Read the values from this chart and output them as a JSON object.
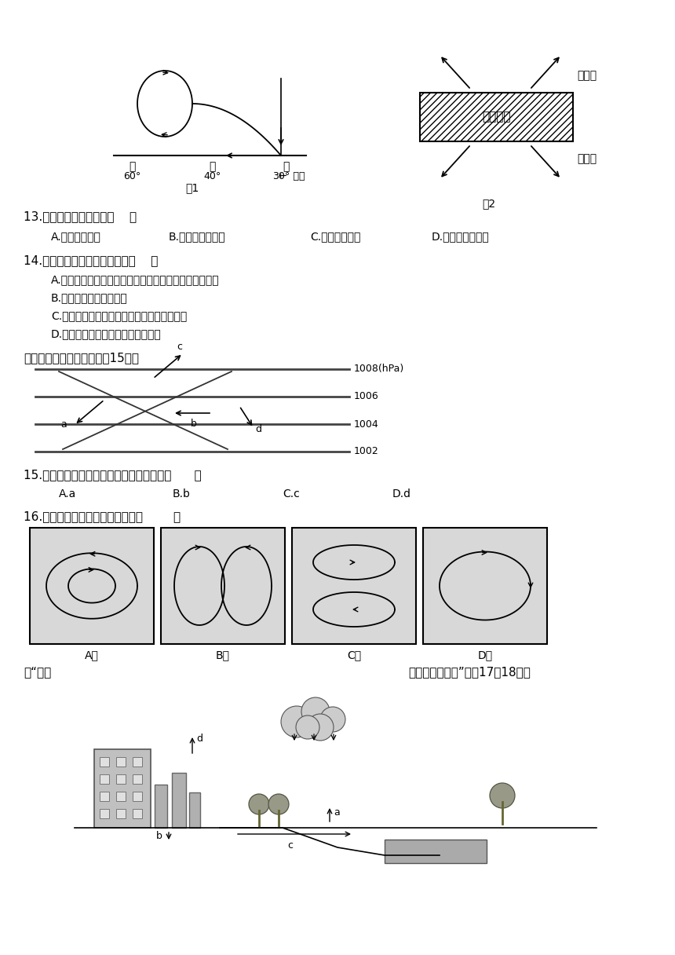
{
  "bg_color": "#ffffff",
  "text_color": "#000000",
  "fig1_label": "图1",
  "fig2_label": "图2",
  "q13": "13.图示甲气压带名称为（    ）",
  "q13a": "A.赤道低气压带",
  "q13b": "B.副热带高气压带",
  "q13c": "C.极地高气压带",
  "q13d": "D.副极地低气压带",
  "q14": "14.关于乙风带的说法正确的是（    ）",
  "q14a": "A.受乙风带的影响，形成全年温和多雨的温带海洋性气候",
  "q14b": "B.乙风带为北半球西风带",
  "q14c": "C.热带草原气候受甲气压带和乙风带交替控制",
  "q14d": "D.乙风带影响下的地区总是高温少雨",
  "q15_intro": "读近地面的等压线图，回筄15题。",
  "q15": "15.图中能正确表示北半球近地面风向的是（      ）",
  "q15a": "A.a",
  "q15b": "B.b",
  "q15c": "C.c",
  "q15d": "D.d",
  "q16": "16.图中正确表示北半球气旋的是（        ）",
  "q17_intro_left": "读“某城",
  "q17_intro_right": "市水循环示意图”完成17～18题。",
  "pressures": [
    1008,
    1006,
    1004,
    1002
  ],
  "panels": [
    "A",
    "B",
    "C",
    "D"
  ]
}
